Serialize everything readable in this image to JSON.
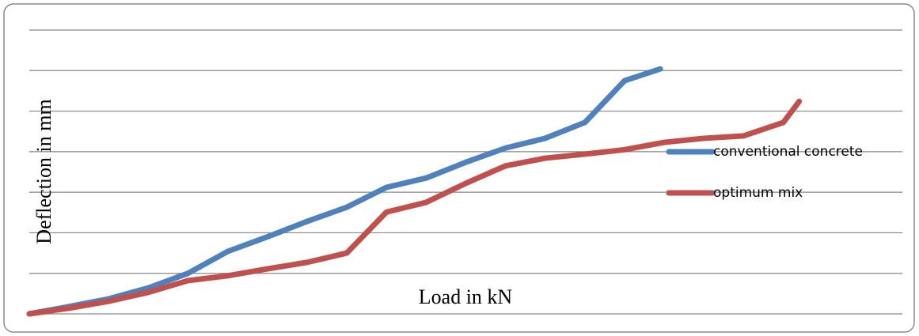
{
  "chart_data": {
    "type": "line",
    "y_label": "Deflection in mm",
    "x_label": "Load in kN",
    "xlim": [
      0,
      22
    ],
    "ylim": [
      0,
      7
    ],
    "yticks": [
      0,
      1,
      2,
      3,
      4,
      5,
      6,
      7
    ],
    "grid": true,
    "series": [
      {
        "name": "conventional concrete",
        "color": "#4f81bd",
        "x": [
          0,
          1,
          2,
          3,
          4,
          5,
          6,
          7,
          8,
          9,
          10,
          11,
          12,
          13,
          14,
          15,
          15.9
        ],
        "values": [
          0,
          0.18,
          0.37,
          0.64,
          1.0,
          1.54,
          1.9,
          2.28,
          2.63,
          3.12,
          3.35,
          3.74,
          4.09,
          4.33,
          4.72,
          5.75,
          6.04
        ]
      },
      {
        "name": "optimum mix",
        "color": "#c0504d",
        "x": [
          0,
          1,
          2,
          3,
          4,
          5,
          6,
          7,
          8,
          9,
          10,
          11,
          12,
          13,
          14,
          15,
          16,
          17,
          18,
          19,
          19.4
        ],
        "values": [
          0,
          0.14,
          0.31,
          0.53,
          0.82,
          0.94,
          1.11,
          1.27,
          1.5,
          2.51,
          2.75,
          3.22,
          3.65,
          3.84,
          3.94,
          4.05,
          4.23,
          4.33,
          4.39,
          4.72,
          5.24
        ]
      }
    ]
  }
}
